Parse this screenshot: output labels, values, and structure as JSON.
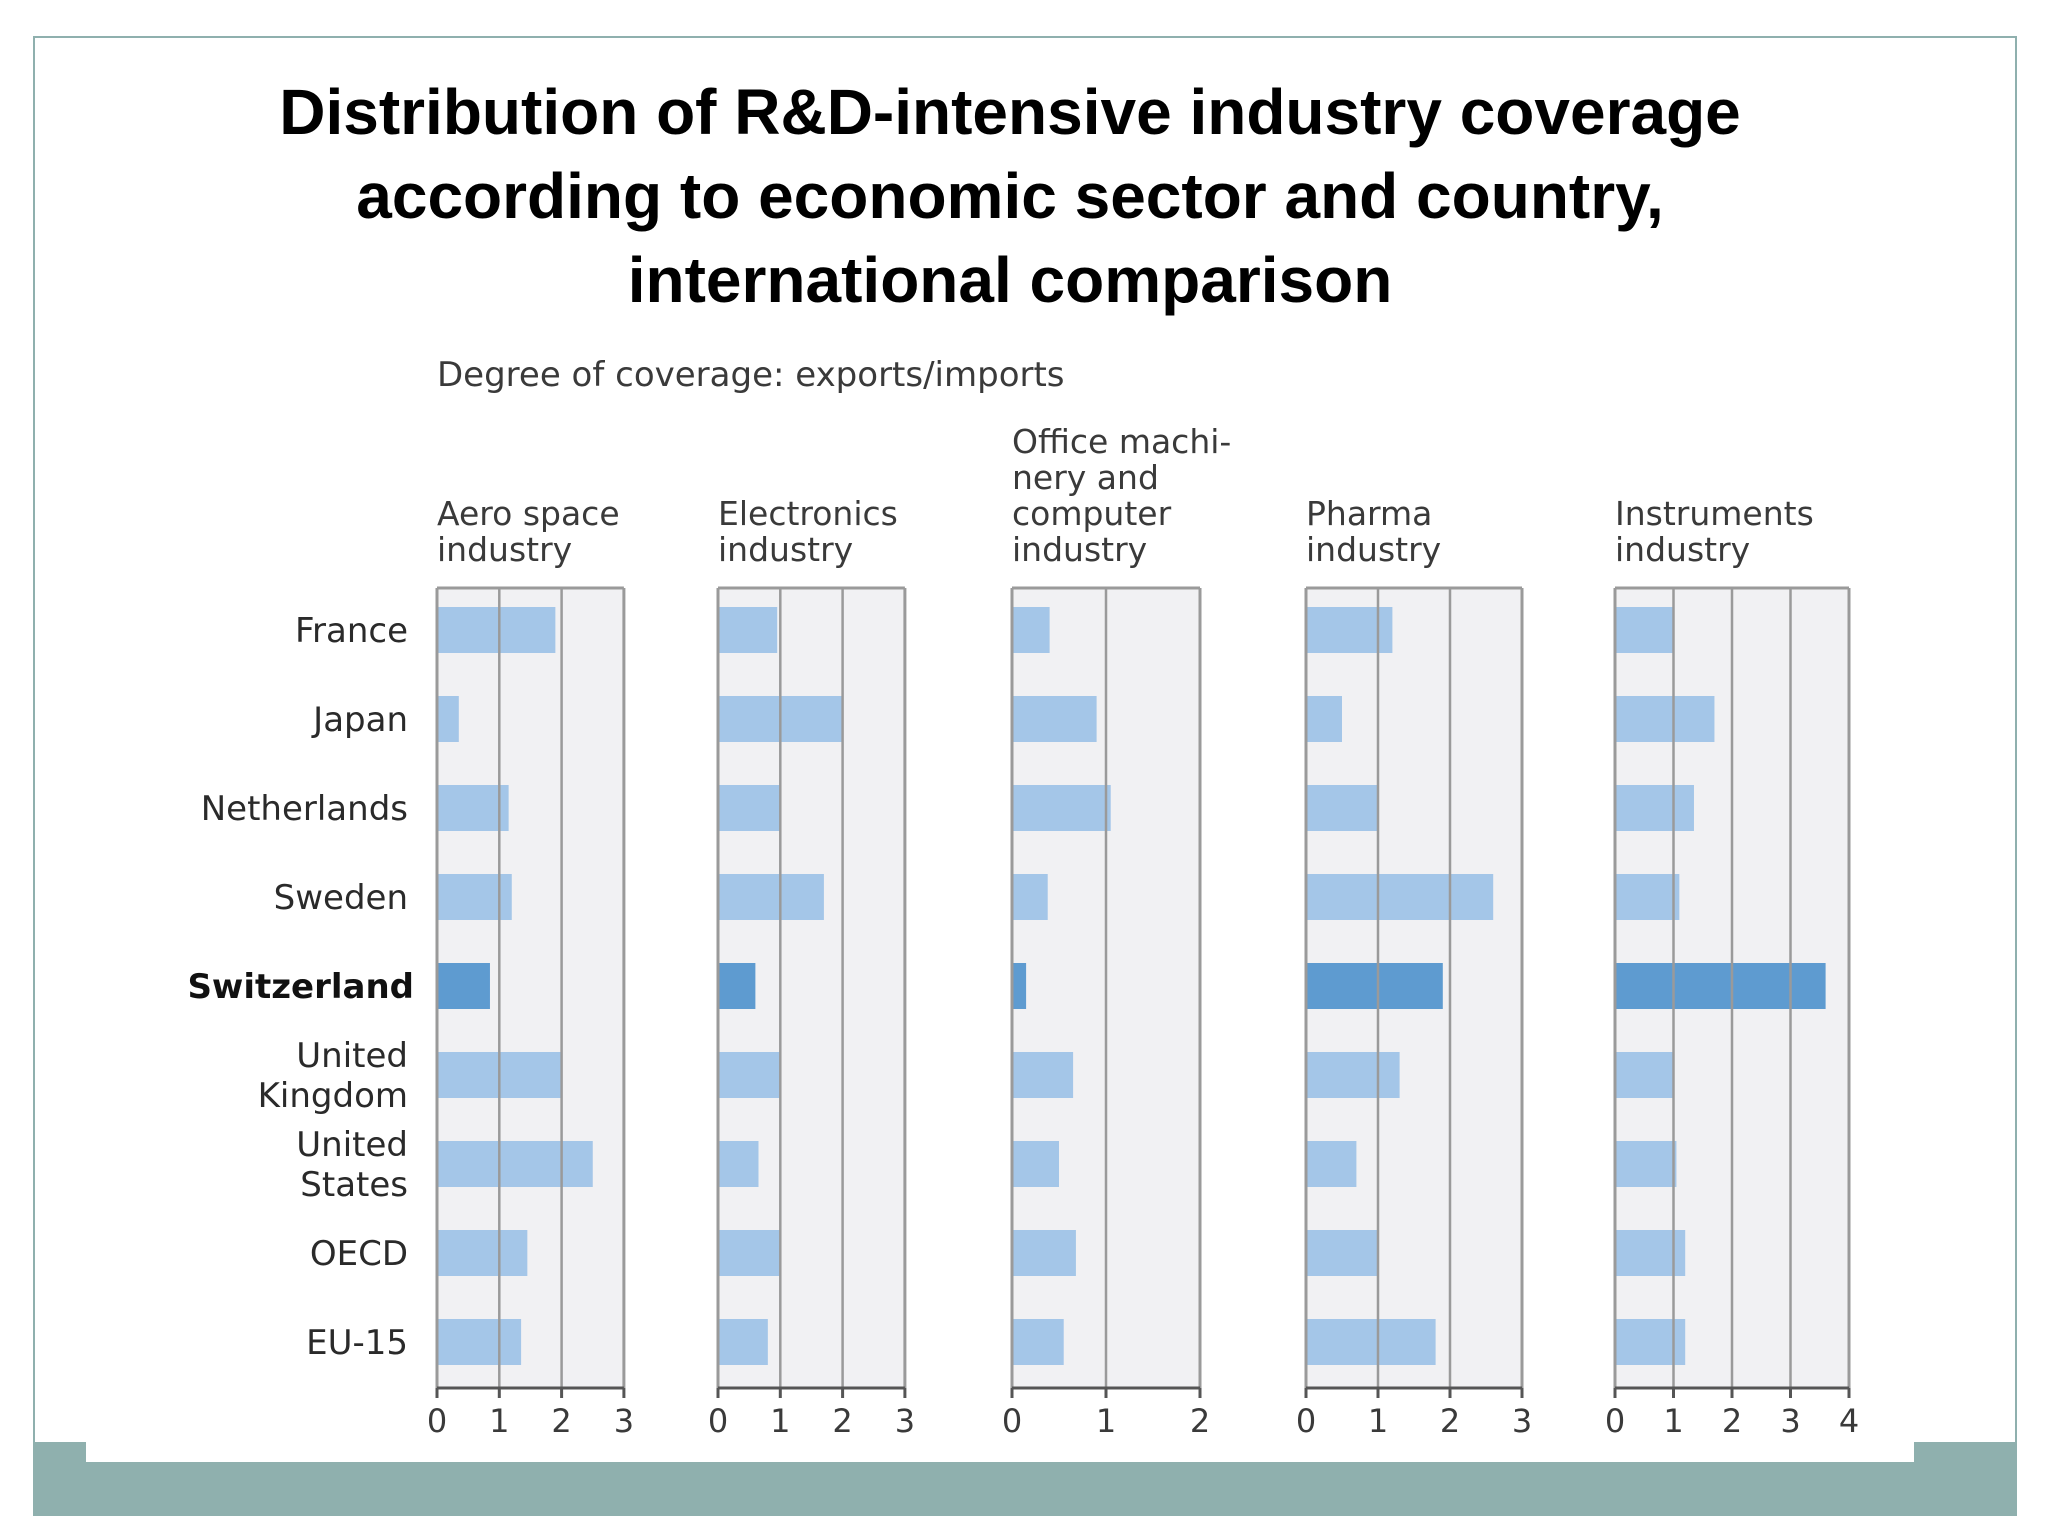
{
  "title_lines": [
    "Distribution of R&D-intensive industry coverage",
    "according to economic sector and country,",
    "international comparison"
  ],
  "colors": {
    "bar": "#a4c6e8",
    "bar_highlight": "#5e9bd0",
    "panel_bg": "#f1f1f3",
    "gridline": "#9a9a9a",
    "frame": "#8fb0ae"
  },
  "chart_data": {
    "type": "bar",
    "orientation": "horizontal",
    "subtitle": "Degree of coverage: exports/imports",
    "categories": [
      "France",
      "Japan",
      "Netherlands",
      "Sweden",
      "Switzerland",
      "United Kingdom",
      "United States",
      "OECD",
      "EU-15"
    ],
    "category_lines": [
      [
        "France"
      ],
      [
        "Japan"
      ],
      [
        "Netherlands"
      ],
      [
        "Sweden"
      ],
      [
        "Switzerland"
      ],
      [
        "United",
        "Kingdom"
      ],
      [
        "United",
        "States"
      ],
      [
        "OECD"
      ],
      [
        "EU-15"
      ]
    ],
    "highlight_category": "Switzerland",
    "series": [
      {
        "name": "Aero space industry",
        "title_lines": [
          "Aero space",
          "industry"
        ],
        "xlim": [
          0,
          3
        ],
        "ticks": [
          "0",
          "1",
          "2",
          "3"
        ],
        "values": [
          1.9,
          0.35,
          1.15,
          1.2,
          0.85,
          2.0,
          2.5,
          1.45,
          1.35
        ]
      },
      {
        "name": "Electronics industry",
        "title_lines": [
          "Electronics",
          "industry"
        ],
        "xlim": [
          0,
          3
        ],
        "ticks": [
          "0",
          "1",
          "2",
          "3"
        ],
        "values": [
          0.95,
          2.0,
          1.0,
          1.7,
          0.6,
          1.0,
          0.65,
          1.0,
          0.8
        ]
      },
      {
        "name": "Office machinery and computer industry",
        "title_lines": [
          "Office machi-",
          "nery and",
          "computer",
          "industry"
        ],
        "xlim": [
          0,
          2
        ],
        "ticks": [
          "0",
          "1",
          "2"
        ],
        "values": [
          0.4,
          0.9,
          1.05,
          0.38,
          0.15,
          0.65,
          0.5,
          0.68,
          0.55
        ]
      },
      {
        "name": "Pharma industry",
        "title_lines": [
          "Pharma",
          "industry"
        ],
        "xlim": [
          0,
          3
        ],
        "ticks": [
          "0",
          "1",
          "2",
          "3"
        ],
        "values": [
          1.2,
          0.5,
          1.0,
          2.6,
          1.9,
          1.3,
          0.7,
          1.0,
          1.8
        ]
      },
      {
        "name": "Instruments industry",
        "title_lines": [
          "Instruments",
          "industry"
        ],
        "xlim": [
          0,
          4
        ],
        "ticks": [
          "0",
          "1",
          "2",
          "3",
          "4"
        ],
        "values": [
          1.0,
          1.7,
          1.35,
          1.1,
          3.6,
          1.0,
          1.05,
          1.2,
          1.2
        ]
      }
    ]
  }
}
